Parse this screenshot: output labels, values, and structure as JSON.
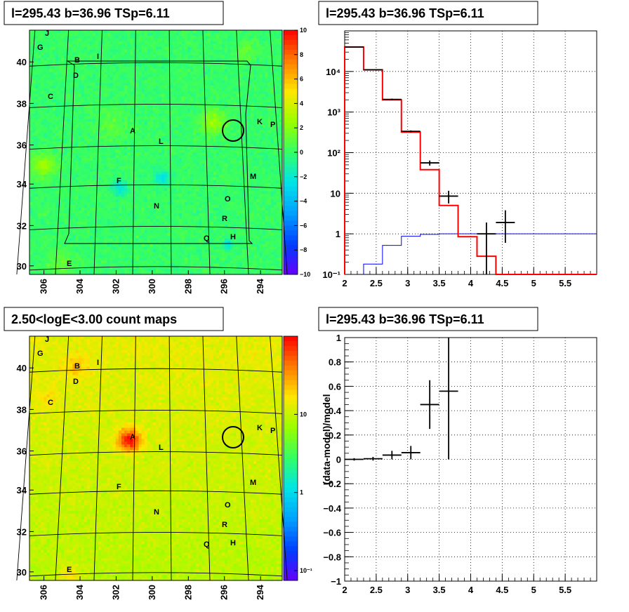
{
  "colors": {
    "heat_cold": "#6600ff",
    "heat_mid": "#33ff66",
    "heat_hot": "#ff0000",
    "model_line": "#ff0000",
    "background_line": "#0000ff",
    "data_points": "#000000",
    "grid": "#000000"
  },
  "panels": {
    "tl": {
      "title": "l=295.43 b=36.96 TSp=6.11"
    },
    "tr": {
      "title": "l=295.43 b=36.96 TSp=6.11"
    },
    "bl": {
      "title": "2.50<logE<3.00 count maps"
    },
    "br": {
      "title": "l=295.43 b=36.96 TSp=6.11"
    }
  },
  "chart_data": [
    {
      "id": "tl",
      "type": "heatmap",
      "title": "l=295.43 b=36.96 TSp=6.11",
      "x_ticks": [
        "306",
        "304",
        "302",
        "300",
        "298",
        "296",
        "294"
      ],
      "y_ticks": [
        "40",
        "38",
        "36",
        "34",
        "32",
        "30"
      ],
      "colorbar": {
        "ticks": [
          "10",
          "8",
          "6",
          "4",
          "2",
          "0",
          "−2",
          "−4",
          "−6",
          "−8",
          "−10"
        ],
        "range": [
          -10,
          10
        ]
      },
      "source_labels": [
        "J",
        "G",
        "B",
        "I",
        "D",
        "C",
        "A",
        "L",
        "K",
        "P",
        "F",
        "M",
        "N",
        "O",
        "R",
        "Q",
        "H",
        "E"
      ]
    },
    {
      "id": "tr",
      "type": "line",
      "title": "l=295.43 b=36.96 TSp=6.11",
      "xlim": [
        2,
        6
      ],
      "ylog": true,
      "ylim": [
        0.1,
        100000
      ],
      "grid": true,
      "x_ticks": [
        "2",
        "2.5",
        "3",
        "3.5",
        "4",
        "4.5",
        "5",
        "5.5"
      ],
      "y_ticks": [
        "10⁻¹",
        "1",
        "10",
        "10²",
        "10³",
        "10⁴"
      ],
      "model_steps": [
        {
          "x0": 2.0,
          "x1": 2.3,
          "y": 40000
        },
        {
          "x0": 2.3,
          "x1": 2.6,
          "y": 11000
        },
        {
          "x0": 2.6,
          "x1": 2.9,
          "y": 2000
        },
        {
          "x0": 2.9,
          "x1": 3.2,
          "y": 320
        },
        {
          "x0": 3.2,
          "x1": 3.5,
          "y": 38
        },
        {
          "x0": 3.5,
          "x1": 3.8,
          "y": 5
        },
        {
          "x0": 3.8,
          "x1": 4.1,
          "y": 0.85
        },
        {
          "x0": 4.1,
          "x1": 4.4,
          "y": 0.28
        },
        {
          "x0": 4.4,
          "x1": 6.0,
          "y": 0.1
        }
      ],
      "background_steps": [
        {
          "x0": 2.3,
          "x1": 2.6,
          "y": 0.18
        },
        {
          "x0": 2.6,
          "x1": 2.9,
          "y": 0.52
        },
        {
          "x0": 2.9,
          "x1": 3.2,
          "y": 0.87
        },
        {
          "x0": 3.2,
          "x1": 3.5,
          "y": 0.97
        },
        {
          "x0": 3.5,
          "x1": 3.8,
          "y": 1.0
        },
        {
          "x0": 3.8,
          "x1": 6.0,
          "y": 1.0
        }
      ],
      "data_points": [
        {
          "x": 2.15,
          "y": 40000,
          "xerr": 0.15,
          "ylo": 39600,
          "yhi": 40400
        },
        {
          "x": 2.45,
          "y": 11000,
          "xerr": 0.15,
          "ylo": 10800,
          "yhi": 11200
        },
        {
          "x": 2.75,
          "y": 2050,
          "xerr": 0.15,
          "ylo": 1960,
          "yhi": 2140
        },
        {
          "x": 3.05,
          "y": 335,
          "xerr": 0.15,
          "ylo": 317,
          "yhi": 353
        },
        {
          "x": 3.35,
          "y": 56,
          "xerr": 0.15,
          "ylo": 48,
          "yhi": 64
        },
        {
          "x": 3.65,
          "y": 8.5,
          "xerr": 0.15,
          "ylo": 5.6,
          "yhi": 11.5
        },
        {
          "x": 4.25,
          "y": 1.0,
          "xerr": 0.15,
          "ylo": 0.1,
          "yhi": 1.9
        },
        {
          "x": 4.55,
          "y": 1.9,
          "xerr": 0.15,
          "ylo": 0.6,
          "yhi": 3.8
        }
      ]
    },
    {
      "id": "bl",
      "type": "heatmap",
      "title": "2.50<logE<3.00 count maps",
      "x_ticks": [
        "306",
        "304",
        "302",
        "300",
        "298",
        "296",
        "294"
      ],
      "y_ticks": [
        "40",
        "38",
        "36",
        "34",
        "32",
        "30"
      ],
      "colorbar": {
        "ticks": [
          "10",
          "1",
          "10⁻¹"
        ],
        "log": true
      },
      "source_labels": [
        "J",
        "G",
        "B",
        "I",
        "D",
        "C",
        "A",
        "L",
        "K",
        "P",
        "F",
        "M",
        "N",
        "O",
        "R",
        "Q",
        "H",
        "E"
      ]
    },
    {
      "id": "br",
      "type": "scatter",
      "title": "l=295.43 b=36.96 TSp=6.11",
      "ylabel": "(data-model)/model",
      "xlim": [
        2,
        6
      ],
      "ylim": [
        -1,
        1
      ],
      "grid": true,
      "x_ticks": [
        "2",
        "2.5",
        "3",
        "3.5",
        "4",
        "4.5",
        "5",
        "5.5"
      ],
      "y_ticks": [
        "−1",
        "−0.8",
        "−0.6",
        "−0.4",
        "−0.2",
        "0",
        "0.2",
        "0.4",
        "0.6",
        "0.8",
        "1"
      ],
      "data_points": [
        {
          "x": 2.15,
          "y": 0.0,
          "xerr": 0.15,
          "ylo": -0.01,
          "yhi": 0.01
        },
        {
          "x": 2.45,
          "y": 0.005,
          "xerr": 0.15,
          "ylo": -0.01,
          "yhi": 0.02
        },
        {
          "x": 2.75,
          "y": 0.035,
          "xerr": 0.15,
          "ylo": 0.0,
          "yhi": 0.07
        },
        {
          "x": 3.05,
          "y": 0.055,
          "xerr": 0.15,
          "ylo": 0.0,
          "yhi": 0.11
        },
        {
          "x": 3.35,
          "y": 0.45,
          "xerr": 0.15,
          "ylo": 0.25,
          "yhi": 0.65
        },
        {
          "x": 3.65,
          "y": 0.56,
          "xerr": 0.15,
          "ylo": 0.0,
          "yhi": 1.0
        }
      ]
    }
  ]
}
